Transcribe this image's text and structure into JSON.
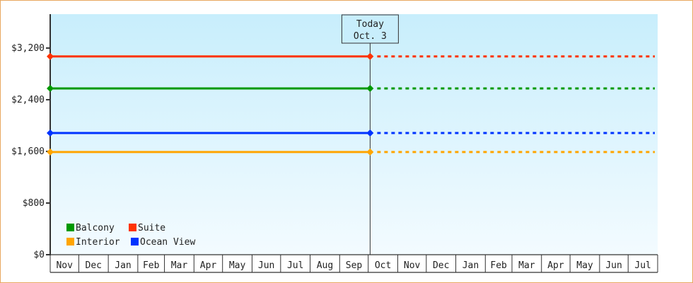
{
  "chart_data": {
    "type": "line",
    "title": "",
    "xlabel": "",
    "ylabel": "",
    "ylim": [
      0,
      3725
    ],
    "yticks": [
      0,
      800,
      1600,
      2400,
      3200
    ],
    "ytick_labels": [
      "$0",
      "$800",
      "$1,600",
      "$2,400",
      "$3,200"
    ],
    "x_months": [
      {
        "label": "Nov",
        "days": 30
      },
      {
        "label": "Dec",
        "days": 31
      },
      {
        "label": "Jan",
        "days": 31
      },
      {
        "label": "Feb",
        "days": 28
      },
      {
        "label": "Mar",
        "days": 31
      },
      {
        "label": "Apr",
        "days": 30
      },
      {
        "label": "May",
        "days": 31
      },
      {
        "label": "Jun",
        "days": 30
      },
      {
        "label": "Jul",
        "days": 31
      },
      {
        "label": "Aug",
        "days": 31
      },
      {
        "label": "Sep",
        "days": 30
      },
      {
        "label": "Oct",
        "days": 31
      },
      {
        "label": "Nov",
        "days": 30
      },
      {
        "label": "Dec",
        "days": 31
      },
      {
        "label": "Jan",
        "days": 31
      },
      {
        "label": "Feb",
        "days": 28
      },
      {
        "label": "Mar",
        "days": 31
      },
      {
        "label": "Apr",
        "days": 30
      },
      {
        "label": "May",
        "days": 31
      },
      {
        "label": "Jun",
        "days": 30
      },
      {
        "label": "Jul",
        "days": 31
      }
    ],
    "today": {
      "line1": "Today",
      "line2": "Oct. 3",
      "month_index": 11,
      "day": 3
    },
    "series": [
      {
        "name": "Suite",
        "color": "#ff3300",
        "values": [
          {
            "x": "Nov 1",
            "y": 3070
          },
          {
            "x": "Oct 3",
            "y": 3070
          }
        ],
        "projection": {
          "to": "Jul 31",
          "y": 3070
        }
      },
      {
        "name": "Balcony",
        "color": "#009900",
        "values": [
          {
            "x": "Nov 1",
            "y": 2575
          },
          {
            "x": "Oct 3",
            "y": 2575
          }
        ],
        "projection": {
          "to": "Jul 31",
          "y": 2575
        }
      },
      {
        "name": "Ocean View",
        "color": "#0033ff",
        "values": [
          {
            "x": "Nov 1",
            "y": 1885
          },
          {
            "x": "Oct 3",
            "y": 1885
          }
        ],
        "projection": {
          "to": "Jul 31",
          "y": 1885
        }
      },
      {
        "name": "Interior",
        "color": "#ffa500",
        "values": [
          {
            "x": "Nov 1",
            "y": 1590
          },
          {
            "x": "Oct 3",
            "y": 1590
          }
        ],
        "projection": {
          "to": "Jul 31",
          "y": 1590
        }
      }
    ],
    "legend": {
      "placement": "bottom-left",
      "order": [
        "Balcony",
        "Suite",
        "Interior",
        "Ocean View"
      ]
    },
    "grid": false,
    "background": {
      "top": "#c8eefc",
      "bottom": "#f3fbff"
    }
  }
}
